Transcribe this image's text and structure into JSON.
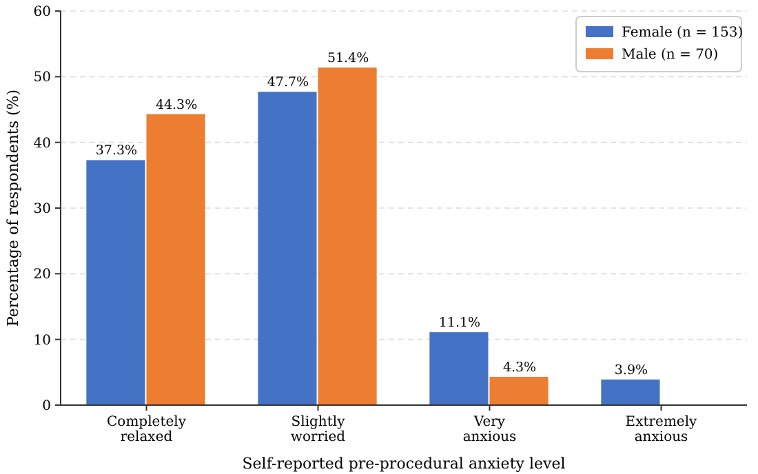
{
  "chart_data": {
    "type": "bar",
    "xlabel": "Self-reported pre-procedural anxiety level",
    "ylabel": "Percentage of respondents (%)",
    "categories": [
      "Completely\nrelaxed",
      "Slightly\nworried",
      "Very\nanxious",
      "Extremely\nanxious"
    ],
    "series": [
      {
        "name": "Female (n = 153)",
        "color": "#4472c4",
        "values": [
          37.3,
          47.7,
          11.1,
          3.9
        ],
        "value_labels": [
          "37.3%",
          "47.7%",
          "11.1%",
          "3.9%"
        ]
      },
      {
        "name": "Male (n = 70)",
        "color": "#ed7d31",
        "values": [
          44.3,
          51.4,
          4.3,
          null
        ],
        "value_labels": [
          "44.3%",
          "51.4%",
          "4.3%",
          null
        ]
      }
    ],
    "ylim": [
      0,
      60
    ],
    "yticks": [
      0,
      10,
      20,
      30,
      40,
      50,
      60
    ],
    "grid": "y",
    "legend": "top right"
  }
}
